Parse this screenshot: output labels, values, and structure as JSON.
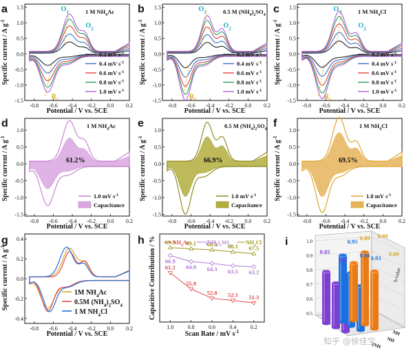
{
  "colors": {
    "c02": "#222222",
    "c04": "#2f6fd6",
    "c06": "#e0453a",
    "c08": "#2e9c5a",
    "c10": "#b25be0",
    "nh4ac": "#c983d4",
    "nh4ac_fill": "#d9a6e0",
    "so4": "#8f8a20",
    "so4_fill": "#b3ad3c",
    "cl": "#e0a52a",
    "cl_fill": "#e7b45a",
    "cyan": "#1aa8c8",
    "orange": "#d9a420",
    "h_ac": "#e24a4a",
    "h_so4": "#b07ad4",
    "h_cl": "#9a961c",
    "cyl_purple": "#7e3ed0",
    "cyl_blue": "#1d6fe0",
    "cyl_orange": "#ea7b14"
  },
  "panel_letters": {
    "a": "a",
    "b": "b",
    "c": "c",
    "d": "d",
    "e": "e",
    "f": "f",
    "g": "g",
    "h": "h",
    "i": "i"
  },
  "ylabel_cv": "Specific current / A g",
  "ylabel_cv_sup": "-1",
  "xlabel_cv": "Potential / V vs. SCE",
  "x_ticks": [
    "-0.8",
    "-0.6",
    "-0.4",
    "-0.2",
    "0.0",
    "0.2"
  ],
  "y_ticks_abc": [
    "1.5",
    "1.0",
    "0.5",
    "0.0",
    "-0.5",
    "-1.0",
    "-1.5"
  ],
  "y_ticks_def": [
    "1.0",
    "0.5",
    "0.0",
    "-0.5",
    "-1.0",
    "-1.5"
  ],
  "y_ticks_g": [
    "0.4",
    "0.2",
    "0.0",
    "-0.2",
    "-0.4"
  ],
  "peak_labels": {
    "o1": "O",
    "o1_sub": "1",
    "o2": "O",
    "o2_sub": "2",
    "r1": "R",
    "r1_sub": "1"
  },
  "chart_data": [
    {
      "type": "line",
      "panel": "a",
      "title": "1 M NH4Ac",
      "xlabel": "Potential / V vs. SCE",
      "ylabel": "Specific current / A g-1",
      "xlim": [
        -0.9,
        0.2
      ],
      "ylim": [
        -1.5,
        1.5
      ],
      "series": [
        {
          "name": "0.2 mV s-1",
          "scale": 0.3
        },
        {
          "name": "0.4 mV s-1",
          "scale": 0.5
        },
        {
          "name": "0.6 mV s-1",
          "scale": 0.7
        },
        {
          "name": "0.8 mV s-1",
          "scale": 0.87
        },
        {
          "name": "1.0 mV s-1",
          "scale": 1.0
        }
      ],
      "peaks": {
        "ox_peak": 1.37,
        "red_peak": -1.3
      }
    },
    {
      "type": "line",
      "panel": "b",
      "title": "0.5 M (NH4)2SO4",
      "xlim": [
        -0.9,
        0.2
      ],
      "ylim": [
        -1.5,
        1.5
      ],
      "series": [
        {
          "name": "0.2 mV s-1",
          "scale": 0.3
        },
        {
          "name": "0.4 mV s-1",
          "scale": 0.5
        },
        {
          "name": "0.6 mV s-1",
          "scale": 0.7
        },
        {
          "name": "0.8 mV s-1",
          "scale": 0.87
        },
        {
          "name": "1.0 mV s-1",
          "scale": 1.0
        }
      ],
      "peaks": {
        "ox_peak": 1.3,
        "red_peak": -1.52
      }
    },
    {
      "type": "line",
      "panel": "c",
      "title": "1 M NH4Cl",
      "xlim": [
        -0.9,
        0.2
      ],
      "ylim": [
        -1.5,
        1.5
      ],
      "series": [
        {
          "name": "0.2 mV s-1",
          "scale": 0.3
        },
        {
          "name": "0.4 mV s-1",
          "scale": 0.5
        },
        {
          "name": "0.6 mV s-1",
          "scale": 0.7
        },
        {
          "name": "0.8 mV s-1",
          "scale": 0.87
        },
        {
          "name": "1.0 mV s-1",
          "scale": 1.0
        }
      ],
      "peaks": {
        "ox_peak": 1.45,
        "red_peak": -1.5
      }
    },
    {
      "type": "area",
      "panel": "d",
      "title": "1 M NH4Ac",
      "capacitance_pct": "61.2%",
      "legend": [
        "1.0 mV s-1",
        "Capacitance"
      ],
      "xlim": [
        -0.9,
        0.2
      ],
      "ylim": [
        -1.5,
        1.3
      ]
    },
    {
      "type": "area",
      "panel": "e",
      "title": "0.5 M (NH4)2SO4",
      "capacitance_pct": "66.9%",
      "legend": [
        "1.0 mV s-1",
        "Capacitance"
      ],
      "xlim": [
        -0.9,
        0.2
      ],
      "ylim": [
        -1.5,
        1.3
      ]
    },
    {
      "type": "area",
      "panel": "f",
      "title": "1 M NH4Cl",
      "capacitance_pct": "69.5%",
      "legend": [
        "1.0 mV s-1",
        "Capacitance"
      ],
      "xlim": [
        -0.9,
        0.2
      ],
      "ylim": [
        -1.5,
        1.3
      ]
    },
    {
      "type": "line",
      "panel": "g",
      "xlim": [
        -0.9,
        0.2
      ],
      "ylim": [
        -0.45,
        0.45
      ],
      "series": [
        {
          "name": "1M NH4Ac"
        },
        {
          "name": "0.5M (NH4)2SO4"
        },
        {
          "name": "1 M NH4Cl"
        }
      ]
    },
    {
      "type": "line",
      "panel": "h",
      "xlabel": "Scan Rate / mV s-1",
      "ylabel": "Capacitive Contribution / %",
      "x": [
        1.0,
        0.8,
        0.6,
        0.4,
        0.2
      ],
      "ylim": [
        45,
        73
      ],
      "series": [
        {
          "name": "NH4Ac",
          "values": [
            61.2,
            55.9,
            52.8,
            52.1,
            51.3
          ]
        },
        {
          "name": "(NH4)2SO4",
          "values": [
            66.9,
            64.9,
            64.3,
            63.5,
            63.2
          ]
        },
        {
          "name": "NH4Cl",
          "values": [
            69.5,
            69.1,
            68.8,
            68.1,
            67.5
          ]
        }
      ]
    },
    {
      "type": "bar",
      "panel": "i",
      "ylabel": "b-value",
      "ylim": [
        0.5,
        1.0
      ],
      "series": [
        {
          "name": "NH4Ac",
          "values": [
            0.85,
            0.8,
            0.7
          ]
        },
        {
          "name": "(NH4)2SO4",
          "values": [
            0.95,
            0.86,
            0.8
          ]
        },
        {
          "name": "NH4Cl",
          "values": [
            0.89,
            0.99,
            0.89
          ]
        }
      ],
      "visible_value_labels": [
        "0.85",
        "0.8",
        "0.95",
        "0.86",
        "0.93",
        "0.89",
        "0.99",
        "0.89"
      ]
    }
  ],
  "a": {
    "title": "1 M NH",
    "title_sub": "4",
    "title_end": "Ac"
  },
  "b": {
    "title": "0.5 M (NH",
    "title_sub": "4",
    "title_mid": ")",
    "title_sub2": "2",
    "title_end": "SO",
    "title_sub3": "4"
  },
  "c": {
    "title": "1 M NH",
    "title_sub": "4",
    "title_end": "Cl"
  },
  "legend_rates": [
    "0.2 mV s",
    "0.4 mV s",
    "0.6 mV s",
    "0.8 mV s",
    "1.0 mV s"
  ],
  "legend_rate_sup": "-1",
  "d": {
    "title": "1 M NH",
    "title_sub": "4",
    "title_end": "Ac",
    "pct": "61.2%"
  },
  "e": {
    "title": "0.5 M (NH",
    "title_sub": "4",
    "title_mid": ")",
    "title_sub2": "2",
    "title_end": "SO",
    "title_sub3": "4",
    "pct": "66.9%"
  },
  "f": {
    "title": "1 M NH",
    "title_sub": "4",
    "title_end": "Cl",
    "pct": "69.5%"
  },
  "def_legend": {
    "line": "1.0 mV s",
    "sup": "-1",
    "fill": "Capacitance"
  },
  "g_legend": [
    "1M NH4Ac",
    "0.5M (NH4)2SO4",
    "1 M NH4Cl"
  ],
  "h": {
    "ylabel": "Capacitive Contribution / %",
    "xlabel": "Scan Rate / mV s",
    "xlabel_sup": "-1",
    "x_ticks": [
      "1.0",
      "0.8",
      "0.6",
      "0.4",
      "0.2"
    ],
    "legend": [
      "NH4Ac",
      "(NH4)2SO4",
      "NH4Cl"
    ],
    "labels_ac": [
      "61.2",
      "55.9",
      "52.8",
      "52.1",
      "51.3"
    ],
    "labels_so4": [
      "66.9",
      "64.9",
      "64.3",
      "63.5",
      "63.2"
    ],
    "labels_cl": [
      "69.5",
      "69.1",
      "68.8",
      "68.1",
      "67.5"
    ]
  },
  "i": {
    "ylabel": "b-value",
    "y_ticks": [
      "1.0",
      "0.9",
      "0.8",
      "0.7",
      "0.6",
      "0.5"
    ],
    "labels": [
      "0.85",
      "0.8",
      "0.95",
      "0.86",
      "0.93",
      "0.89",
      "0.99",
      "0.89"
    ],
    "axis_labels": [
      "NH",
      "NH",
      "(NH"
    ],
    "watermark": "知乎 @徐佳宝"
  }
}
